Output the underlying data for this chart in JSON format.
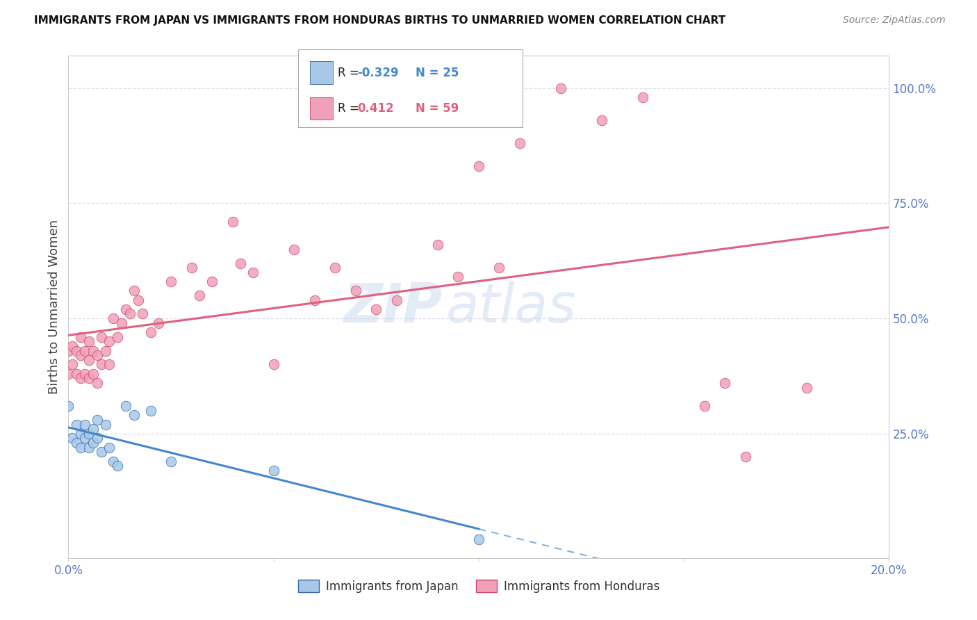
{
  "title": "IMMIGRANTS FROM JAPAN VS IMMIGRANTS FROM HONDURAS BIRTHS TO UNMARRIED WOMEN CORRELATION CHART",
  "source": "Source: ZipAtlas.com",
  "ylabel": "Births to Unmarried Women",
  "legend_japan": "Immigrants from Japan",
  "legend_honduras": "Immigrants from Honduras",
  "R_japan": -0.329,
  "N_japan": 25,
  "R_honduras": 0.412,
  "N_honduras": 59,
  "color_japan": "#a8c8e8",
  "color_honduras": "#f0a0b8",
  "color_japan_line": "#4488cc",
  "color_honduras_line": "#e06080",
  "color_japan_dark": "#3366aa",
  "color_honduras_dark": "#cc4466",
  "japan_x": [
    0.0,
    0.001,
    0.002,
    0.002,
    0.003,
    0.003,
    0.004,
    0.004,
    0.005,
    0.005,
    0.006,
    0.006,
    0.007,
    0.007,
    0.008,
    0.009,
    0.01,
    0.011,
    0.012,
    0.014,
    0.016,
    0.02,
    0.025,
    0.05,
    0.1
  ],
  "japan_y": [
    0.31,
    0.24,
    0.23,
    0.27,
    0.22,
    0.25,
    0.24,
    0.27,
    0.22,
    0.25,
    0.23,
    0.26,
    0.24,
    0.28,
    0.21,
    0.27,
    0.22,
    0.19,
    0.18,
    0.31,
    0.29,
    0.3,
    0.19,
    0.17,
    0.02
  ],
  "honduras_x": [
    0.0,
    0.0,
    0.001,
    0.001,
    0.002,
    0.002,
    0.003,
    0.003,
    0.003,
    0.004,
    0.004,
    0.005,
    0.005,
    0.005,
    0.006,
    0.006,
    0.007,
    0.007,
    0.008,
    0.008,
    0.009,
    0.01,
    0.01,
    0.011,
    0.012,
    0.013,
    0.014,
    0.015,
    0.016,
    0.017,
    0.018,
    0.02,
    0.022,
    0.025,
    0.03,
    0.032,
    0.035,
    0.04,
    0.042,
    0.045,
    0.05,
    0.055,
    0.06,
    0.065,
    0.07,
    0.075,
    0.08,
    0.09,
    0.095,
    0.1,
    0.105,
    0.11,
    0.12,
    0.13,
    0.14,
    0.155,
    0.16,
    0.165,
    0.18
  ],
  "honduras_y": [
    0.38,
    0.43,
    0.4,
    0.44,
    0.38,
    0.43,
    0.37,
    0.42,
    0.46,
    0.38,
    0.43,
    0.37,
    0.41,
    0.45,
    0.38,
    0.43,
    0.36,
    0.42,
    0.4,
    0.46,
    0.43,
    0.4,
    0.45,
    0.5,
    0.46,
    0.49,
    0.52,
    0.51,
    0.56,
    0.54,
    0.51,
    0.47,
    0.49,
    0.58,
    0.61,
    0.55,
    0.58,
    0.71,
    0.62,
    0.6,
    0.4,
    0.65,
    0.54,
    0.61,
    0.56,
    0.52,
    0.54,
    0.66,
    0.59,
    0.83,
    0.61,
    0.88,
    1.0,
    0.93,
    0.98,
    0.31,
    0.36,
    0.2,
    0.35
  ],
  "xlim": [
    0.0,
    0.2
  ],
  "ylim": [
    -0.02,
    1.07
  ],
  "japan_line_solid_end": 0.1,
  "japan_line_dash_end": 0.2,
  "honduras_line_end": 0.2,
  "watermark_text": "ZIPatlas",
  "background_color": "#ffffff",
  "grid_color": "#ddddee",
  "yticks": [
    0.25,
    0.5,
    0.75,
    1.0
  ],
  "ytick_labels": [
    "25.0%",
    "50.0%",
    "75.0%",
    "100.0%"
  ],
  "xtick_labels_show": [
    "0.0%",
    "20.0%"
  ],
  "title_fontsize": 11,
  "axis_label_fontsize": 13,
  "tick_fontsize": 12,
  "scatter_size": 110
}
